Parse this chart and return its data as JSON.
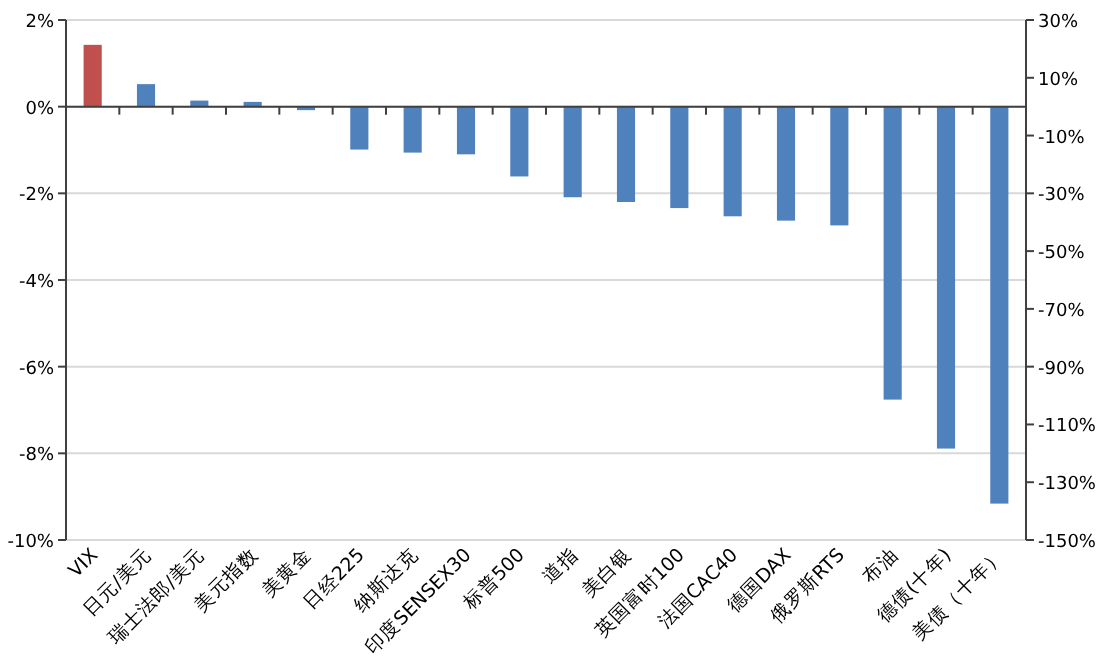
{
  "chart_data": {
    "type": "bar",
    "categories": [
      "VIX",
      "日元/美元",
      "瑞士法郎/美元",
      "美元指数",
      "美黄金",
      "日经225",
      "纳斯达克",
      "印度SENSEX30",
      "标普500",
      "道指",
      "美白银",
      "英国富时100",
      "法国CAC40",
      "德国DAX",
      "俄罗斯RTS",
      "布油",
      "德债(十年)",
      "美债（十年）"
    ],
    "series": [
      {
        "color": "#c0504d",
        "axis": "y2",
        "values": [
          21.4,
          null,
          null,
          null,
          null,
          null,
          null,
          null,
          null,
          null,
          null,
          null,
          null,
          null,
          null,
          null,
          null,
          null
        ]
      },
      {
        "color": "#4f81bd",
        "values": [
          null,
          0.52,
          0.14,
          0.11,
          -0.08,
          -0.99,
          -1.06,
          -1.1,
          -1.61,
          -2.09,
          -2.2,
          -2.34,
          -2.53,
          -2.63,
          -2.74,
          -6.76,
          -7.89,
          -9.16
        ]
      }
    ],
    "ylim": [
      -10,
      2
    ],
    "yticks": [
      {
        "value": -10,
        "label": "-10%"
      },
      {
        "value": -8,
        "label": "-8%"
      },
      {
        "value": -6,
        "label": "-6%"
      },
      {
        "value": -4,
        "label": "-4%"
      },
      {
        "value": -2,
        "label": "-2%"
      },
      {
        "value": 0,
        "label": "0%"
      },
      {
        "value": 2,
        "label": "2%"
      }
    ],
    "y2lim": [
      -150,
      30
    ],
    "y2ticks": [
      {
        "value": -150,
        "label": "-150%"
      },
      {
        "value": -130,
        "label": "-130%"
      },
      {
        "value": -110,
        "label": "-110%"
      },
      {
        "value": -90,
        "label": "-90%"
      },
      {
        "value": -70,
        "label": "-70%"
      },
      {
        "value": -50,
        "label": "-50%"
      },
      {
        "value": -30,
        "label": "-30%"
      },
      {
        "value": -10,
        "label": "-10%"
      },
      {
        "value": 10,
        "label": "10%"
      },
      {
        "value": 30,
        "label": "30%"
      }
    ],
    "grid": "y"
  }
}
